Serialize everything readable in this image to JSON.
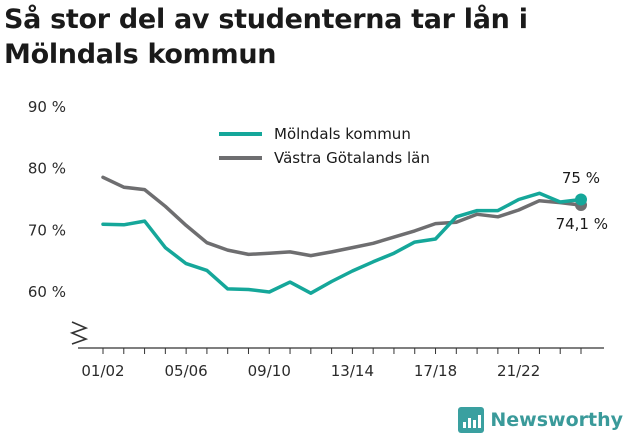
{
  "title": "Så stor del av studenterna tar lån i Mölndals kommun",
  "brand": {
    "name": "Newsworthy",
    "icon": "newsworthy-logo-icon"
  },
  "chart_data": {
    "type": "line",
    "title": "Så stor del av studenterna tar lån i Mölndals kommun",
    "xlabel": "",
    "ylabel": "",
    "ylim": [
      51,
      90
    ],
    "y_ticks": [
      60,
      70,
      80,
      90
    ],
    "y_tick_labels": [
      "60 %",
      "70 %",
      "80 %",
      "90 %"
    ],
    "x_tick_labels": [
      "01/02",
      "05/06",
      "09/10",
      "13/14",
      "17/18",
      "21/22"
    ],
    "x": [
      "01/02",
      "02/03",
      "03/04",
      "04/05",
      "05/06",
      "06/07",
      "07/08",
      "08/09",
      "09/10",
      "10/11",
      "11/12",
      "12/13",
      "13/14",
      "14/15",
      "15/16",
      "16/17",
      "17/18",
      "18/19",
      "19/20",
      "20/21",
      "21/22",
      "22/23",
      "23/24",
      "24/25"
    ],
    "axis_break": true,
    "grid": false,
    "legend": "top-center",
    "series": [
      {
        "name": "Mölndals kommun",
        "color": "#15a79a",
        "values": [
          71.0,
          70.9,
          71.5,
          67.2,
          64.6,
          63.5,
          60.5,
          60.4,
          60.0,
          61.6,
          59.8,
          61.7,
          63.4,
          64.9,
          66.3,
          68.1,
          68.6,
          72.2,
          73.2,
          73.2,
          75.0,
          76.0,
          74.6,
          75.0
        ],
        "end_label": "75 %"
      },
      {
        "name": "Västra Götalands län",
        "color": "#6e6e70",
        "values": [
          78.6,
          77.0,
          76.6,
          73.9,
          70.8,
          68.0,
          66.8,
          66.1,
          66.3,
          66.5,
          65.9,
          66.5,
          67.2,
          67.9,
          68.9,
          69.9,
          71.1,
          71.3,
          72.6,
          72.2,
          73.3,
          74.8,
          74.5,
          74.1
        ],
        "end_label": "74,1 %"
      }
    ]
  }
}
